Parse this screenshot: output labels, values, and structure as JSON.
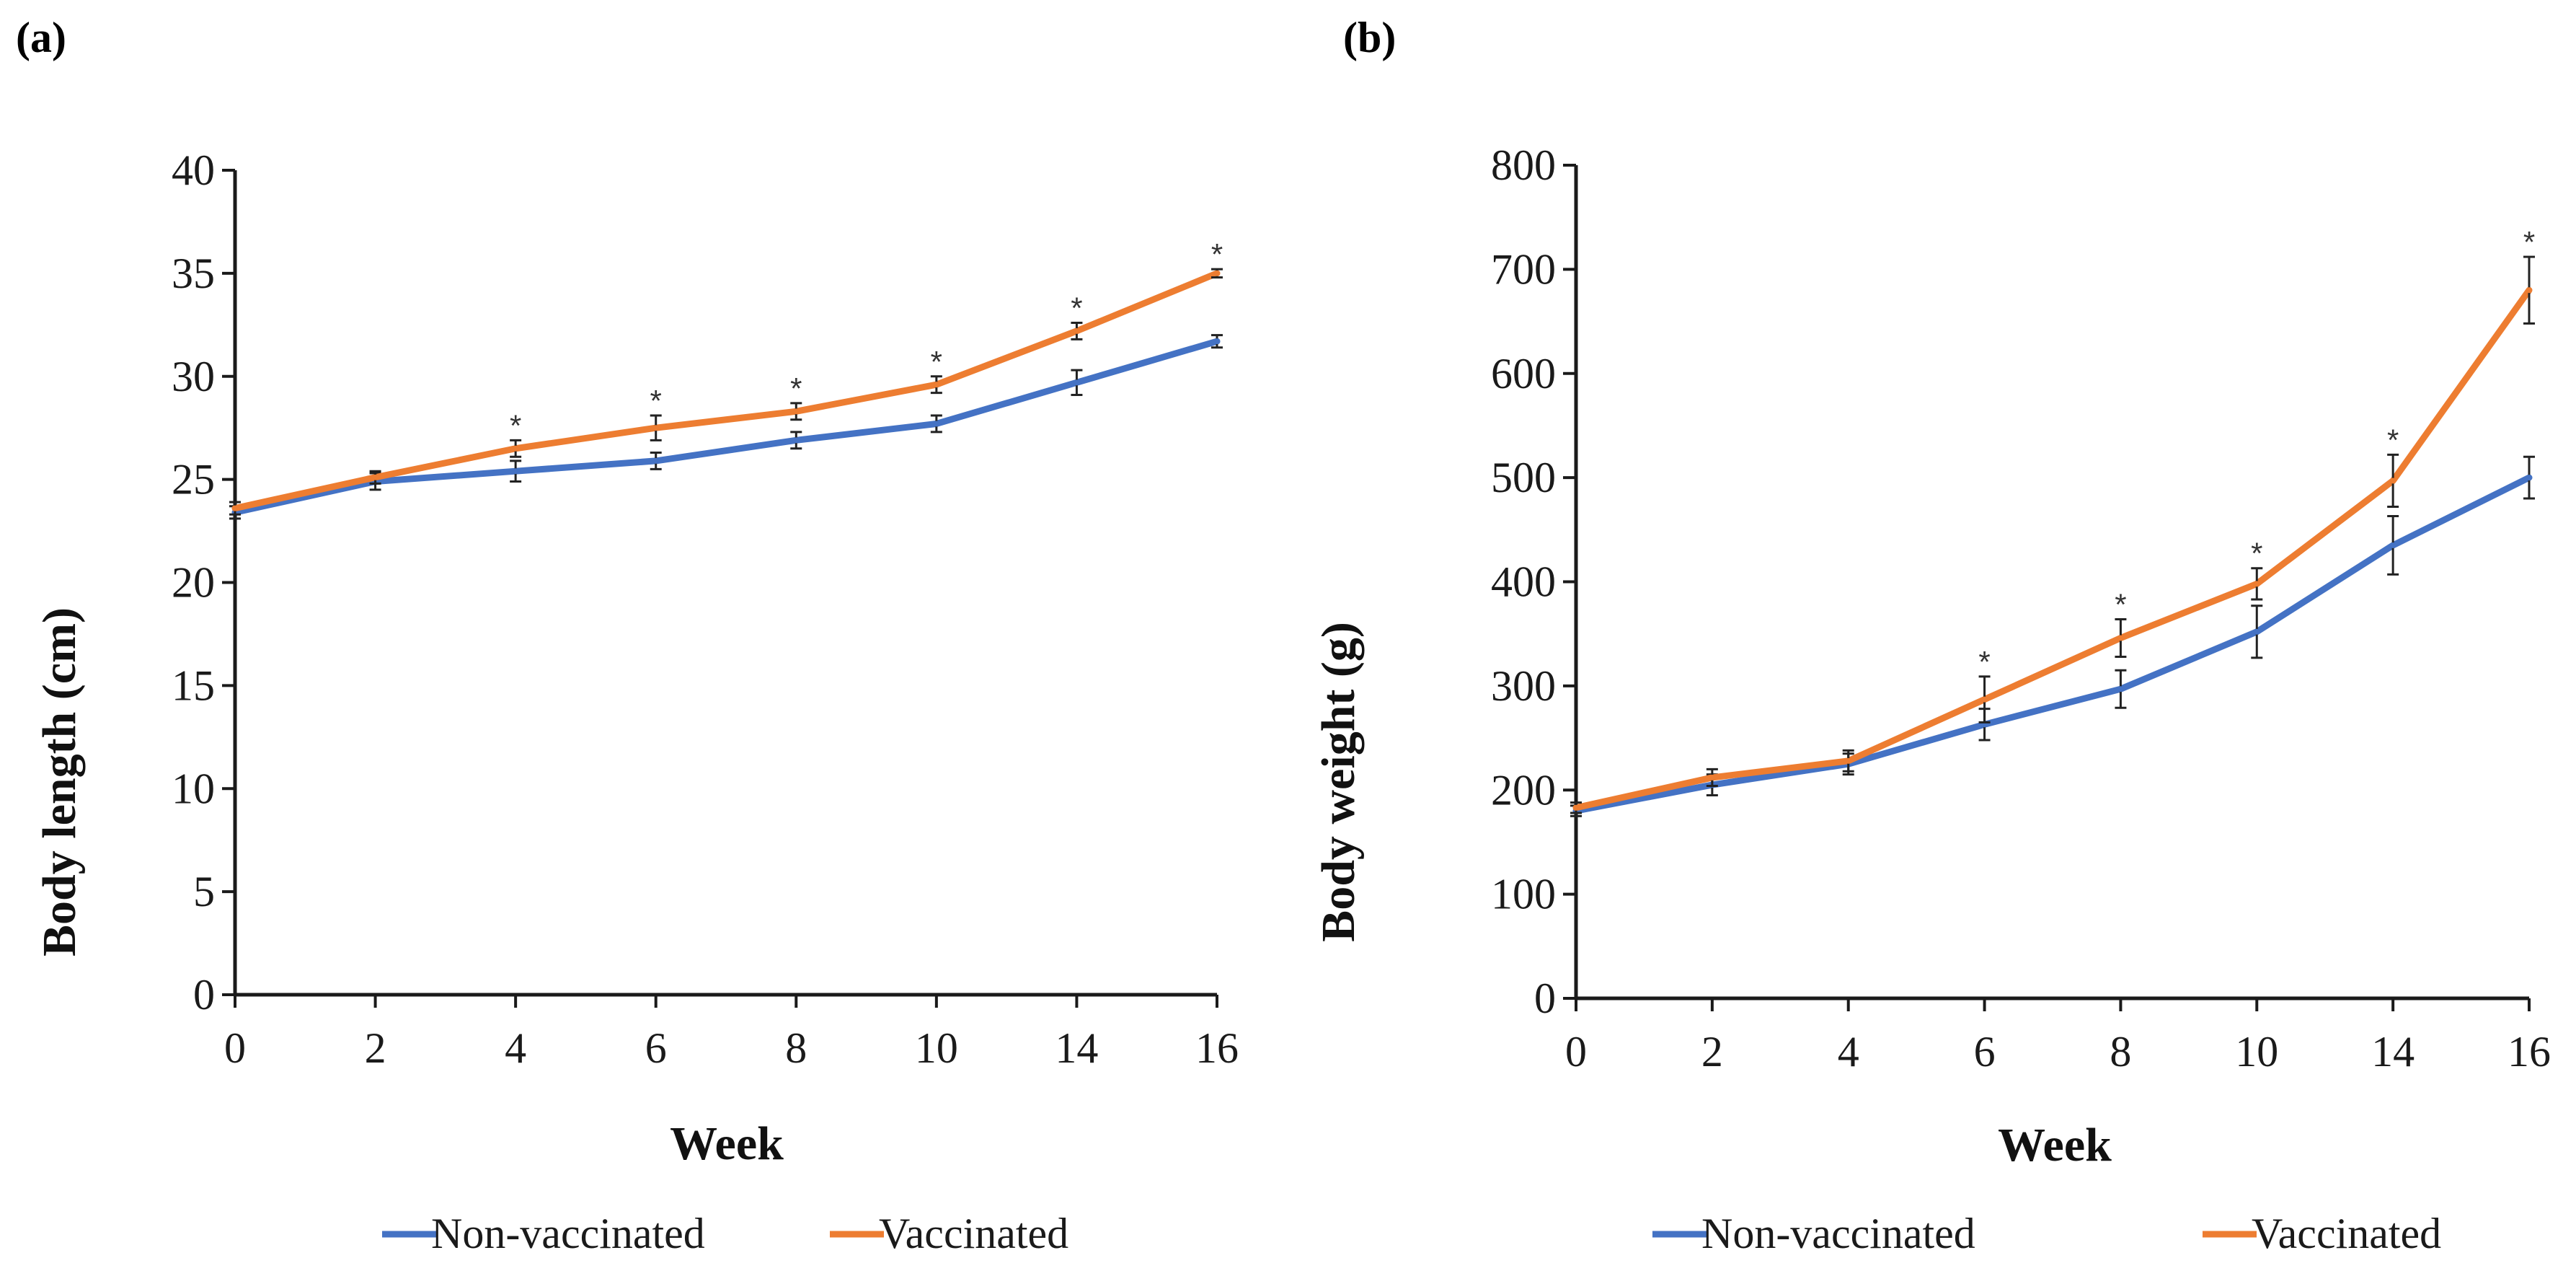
{
  "chart_data": [
    {
      "type": "line",
      "panel_label": "(a)",
      "title": "",
      "xlabel": "Week",
      "ylabel": "Body length (cm)",
      "categories": [
        "0",
        "2",
        "4",
        "6",
        "8",
        "10",
        "14",
        "16"
      ],
      "ylim": [
        0,
        40
      ],
      "yticks": [
        "0",
        "5",
        "10",
        "15",
        "20",
        "25",
        "30",
        "35",
        "40"
      ],
      "grid": false,
      "legend_position": "bottom",
      "series": [
        {
          "name": "Non-vaccinated",
          "color": "#4472C4",
          "values": [
            23.4,
            24.9,
            25.4,
            25.9,
            26.9,
            27.7,
            29.7,
            31.7
          ],
          "errors": [
            0.3,
            0.4,
            0.5,
            0.4,
            0.4,
            0.4,
            0.6,
            0.3
          ]
        },
        {
          "name": "Vaccinated",
          "color": "#ED7D31",
          "values": [
            23.6,
            25.1,
            26.5,
            27.5,
            28.3,
            29.6,
            32.2,
            35.0
          ],
          "errors": [
            0.3,
            0.3,
            0.4,
            0.6,
            0.4,
            0.4,
            0.4,
            0.2
          ]
        }
      ],
      "significance": [
        "",
        "",
        "*",
        "*",
        "*",
        "*",
        "*",
        "*"
      ]
    },
    {
      "type": "line",
      "panel_label": "(b)",
      "title": "",
      "xlabel": "Week",
      "ylabel": "Body weight (g)",
      "categories": [
        "0",
        "2",
        "4",
        "6",
        "8",
        "10",
        "14",
        "16"
      ],
      "ylim": [
        0,
        800
      ],
      "yticks": [
        "0",
        "100",
        "200",
        "300",
        "400",
        "500",
        "600",
        "700",
        "800"
      ],
      "grid": false,
      "legend_position": "bottom",
      "series": [
        {
          "name": "Non-vaccinated",
          "color": "#4472C4",
          "values": [
            180,
            205,
            225,
            263,
            297,
            352,
            435,
            500
          ],
          "errors": [
            5,
            10,
            10,
            15,
            18,
            25,
            28,
            20
          ]
        },
        {
          "name": "Vaccinated",
          "color": "#ED7D31",
          "values": [
            183,
            212,
            228,
            287,
            346,
            398,
            497,
            680
          ],
          "errors": [
            5,
            8,
            10,
            22,
            18,
            15,
            25,
            32
          ]
        }
      ],
      "significance": [
        "",
        "",
        "",
        "*",
        "*",
        "*",
        "*",
        "*"
      ]
    }
  ]
}
